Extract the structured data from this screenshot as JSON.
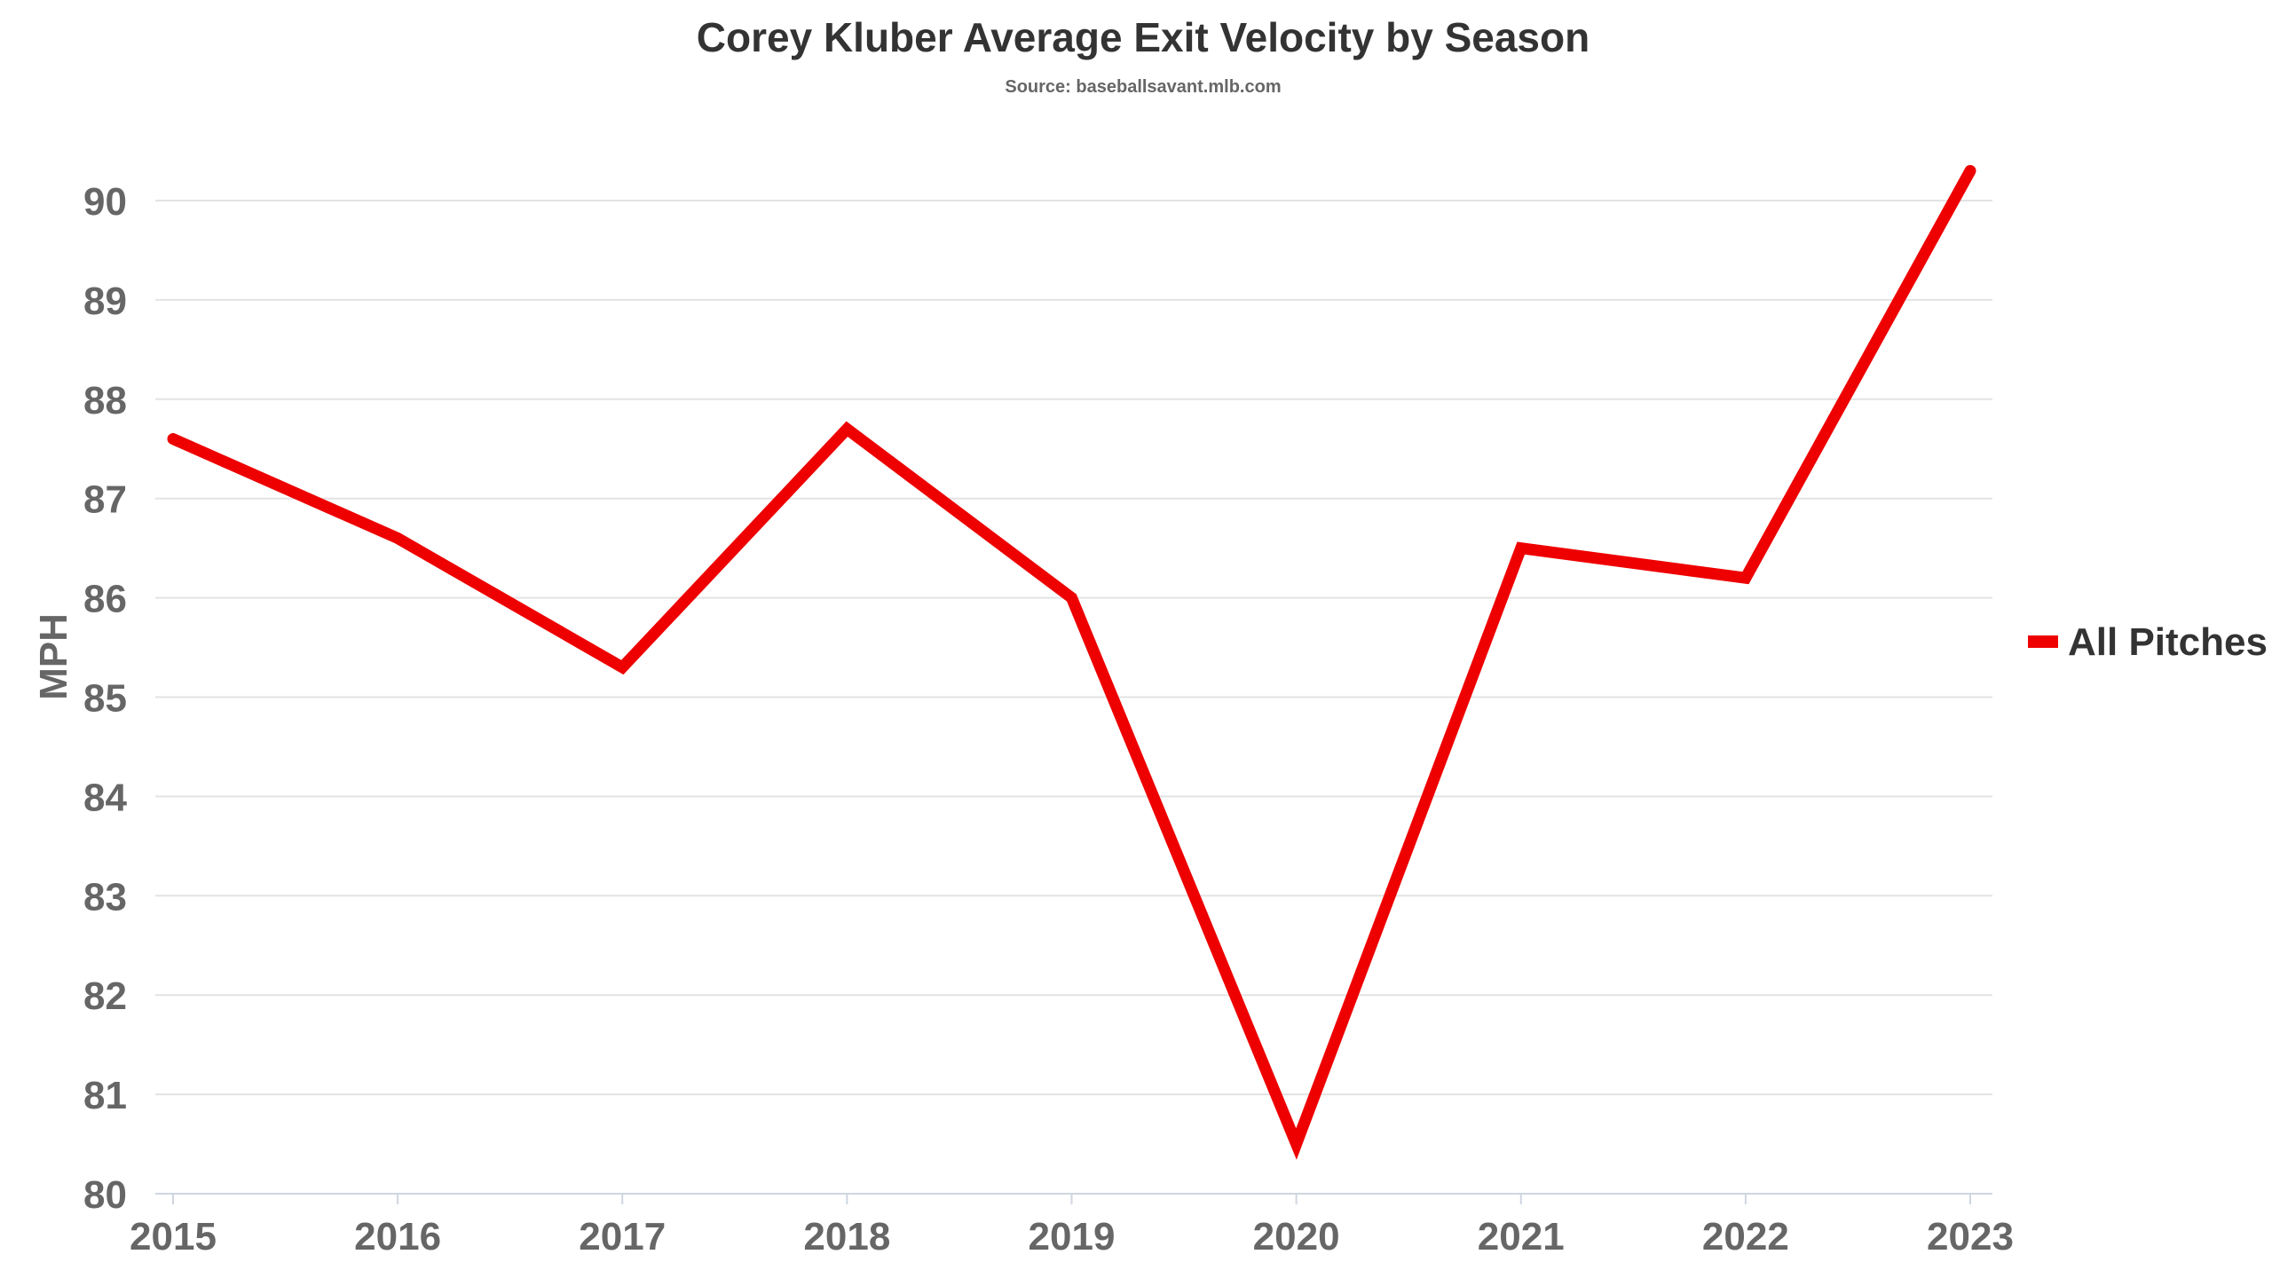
{
  "chart_data": {
    "type": "line",
    "title": "Corey Kluber Average Exit Velocity by Season",
    "subtitle": "Source: baseballsavant.mlb.com",
    "xlabel": "",
    "ylabel": "MPH",
    "categories": [
      "2015",
      "2016",
      "2017",
      "2018",
      "2019",
      "2020",
      "2021",
      "2022",
      "2023"
    ],
    "series": [
      {
        "name": "All Pitches",
        "color": "#ee0000",
        "values": [
          87.6,
          86.6,
          85.3,
          87.7,
          86.0,
          80.5,
          86.5,
          86.2,
          90.3
        ]
      }
    ],
    "ylim": [
      80,
      90
    ],
    "yticks": [
      80,
      81,
      82,
      83,
      84,
      85,
      86,
      87,
      88,
      89,
      90
    ],
    "grid": true,
    "legend": "right"
  }
}
